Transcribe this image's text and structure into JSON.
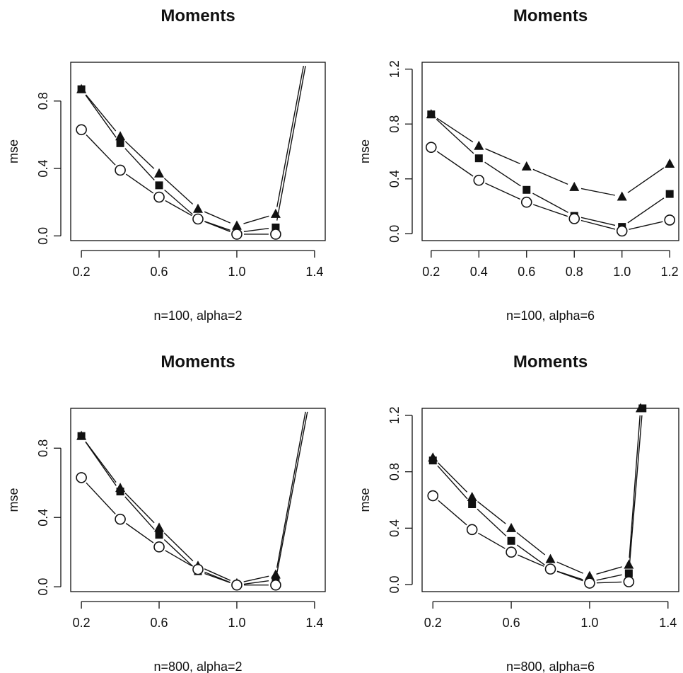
{
  "chart_data": [
    {
      "type": "line",
      "title": "Moments",
      "xlabel": "n=100, alpha=2",
      "ylabel": "mse",
      "xlim": [
        0.2,
        1.4
      ],
      "ylim": [
        0.0,
        0.8
      ],
      "xticks": [
        "0.2",
        "0.6",
        "1.0",
        "1.4"
      ],
      "yticks": [
        "0.0",
        "0.4",
        "0.8"
      ],
      "series": [
        {
          "marker": "triangle",
          "x": [
            0.2,
            0.4,
            0.6,
            0.8,
            1.0,
            1.2,
            1.35
          ],
          "y": [
            0.87,
            0.59,
            0.37,
            0.16,
            0.06,
            0.13,
            1.05
          ]
        },
        {
          "marker": "square",
          "x": [
            0.2,
            0.4,
            0.6,
            0.8,
            1.0,
            1.2,
            1.36
          ],
          "y": [
            0.87,
            0.55,
            0.3,
            0.1,
            0.02,
            0.05,
            1.05
          ]
        },
        {
          "marker": "circle",
          "x": [
            0.2,
            0.4,
            0.6,
            0.8,
            1.0,
            1.2
          ],
          "y": [
            0.63,
            0.39,
            0.23,
            0.1,
            0.01,
            0.01
          ]
        }
      ]
    },
    {
      "type": "line",
      "title": "Moments",
      "xlabel": "n=100, alpha=6",
      "ylabel": "mse",
      "xlim": [
        0.2,
        1.2
      ],
      "ylim": [
        0.0,
        1.2
      ],
      "xticks": [
        "0.2",
        "0.4",
        "0.6",
        "0.8",
        "1.0",
        "1.2"
      ],
      "yticks": [
        "0.0",
        "0.4",
        "0.8",
        "1.2"
      ],
      "series": [
        {
          "marker": "triangle",
          "x": [
            0.2,
            0.4,
            0.6,
            0.8,
            1.0,
            1.2
          ],
          "y": [
            0.87,
            0.64,
            0.49,
            0.34,
            0.27,
            0.51
          ]
        },
        {
          "marker": "square",
          "x": [
            0.2,
            0.4,
            0.6,
            0.8,
            1.0,
            1.2
          ],
          "y": [
            0.87,
            0.55,
            0.32,
            0.13,
            0.05,
            0.29
          ]
        },
        {
          "marker": "circle",
          "x": [
            0.2,
            0.4,
            0.6,
            0.8,
            1.0,
            1.2
          ],
          "y": [
            0.63,
            0.39,
            0.23,
            0.11,
            0.02,
            0.1
          ]
        }
      ]
    },
    {
      "type": "line",
      "title": "Moments",
      "xlabel": "n=800, alpha=2",
      "ylabel": "mse",
      "xlim": [
        0.2,
        1.4
      ],
      "ylim": [
        0.0,
        0.8
      ],
      "xticks": [
        "0.2",
        "0.6",
        "1.0",
        "1.4"
      ],
      "yticks": [
        "0.0",
        "0.4",
        "0.8"
      ],
      "series": [
        {
          "marker": "triangle",
          "x": [
            0.2,
            0.4,
            0.6,
            0.8,
            1.0,
            1.2,
            1.36
          ],
          "y": [
            0.87,
            0.57,
            0.34,
            0.12,
            0.02,
            0.07,
            1.05
          ]
        },
        {
          "marker": "square",
          "x": [
            0.2,
            0.4,
            0.6,
            0.8,
            1.0,
            1.2,
            1.37
          ],
          "y": [
            0.87,
            0.55,
            0.3,
            0.09,
            0.01,
            0.04,
            1.05
          ]
        },
        {
          "marker": "circle",
          "x": [
            0.2,
            0.4,
            0.6,
            0.8,
            1.0,
            1.2
          ],
          "y": [
            0.63,
            0.39,
            0.23,
            0.1,
            0.01,
            0.01
          ]
        }
      ]
    },
    {
      "type": "line",
      "title": "Moments",
      "xlabel": "n=800, alpha=6",
      "ylabel": "mse",
      "xlim": [
        0.2,
        1.4
      ],
      "ylim": [
        0.0,
        1.2
      ],
      "xticks": [
        "0.2",
        "0.6",
        "1.0",
        "1.4"
      ],
      "yticks": [
        "0.0",
        "0.4",
        "0.8",
        "1.2"
      ],
      "series": [
        {
          "marker": "triangle",
          "x": [
            0.2,
            0.4,
            0.6,
            0.8,
            1.0,
            1.2,
            1.26
          ],
          "y": [
            0.9,
            0.62,
            0.4,
            0.18,
            0.06,
            0.14,
            1.25
          ]
        },
        {
          "marker": "square",
          "x": [
            0.2,
            0.4,
            0.6,
            0.8,
            1.0,
            1.2,
            1.27
          ],
          "y": [
            0.88,
            0.57,
            0.31,
            0.11,
            0.02,
            0.08,
            1.25
          ]
        },
        {
          "marker": "circle",
          "x": [
            0.2,
            0.4,
            0.6,
            0.8,
            1.0,
            1.2
          ],
          "y": [
            0.63,
            0.39,
            0.23,
            0.11,
            0.01,
            0.02
          ]
        }
      ]
    }
  ]
}
